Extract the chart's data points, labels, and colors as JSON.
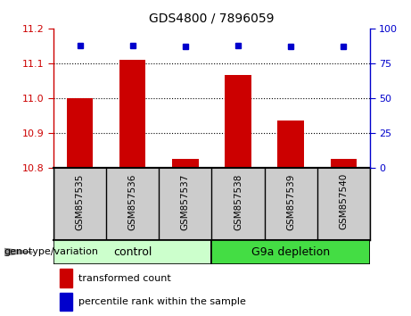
{
  "title": "GDS4800 / 7896059",
  "samples": [
    "GSM857535",
    "GSM857536",
    "GSM857537",
    "GSM857538",
    "GSM857539",
    "GSM857540"
  ],
  "bar_values": [
    11.0,
    11.11,
    10.825,
    11.065,
    10.935,
    10.825
  ],
  "percentile_values": [
    88,
    88,
    87,
    88,
    87,
    87
  ],
  "ylim_left": [
    10.8,
    11.2
  ],
  "ylim_right": [
    0,
    100
  ],
  "yticks_left": [
    10.8,
    10.9,
    11.0,
    11.1,
    11.2
  ],
  "yticks_right": [
    0,
    25,
    50,
    75,
    100
  ],
  "bar_color": "#cc0000",
  "dot_color": "#0000cc",
  "bar_bottom": 10.8,
  "control_label": "control",
  "g9a_label": "G9a depletion",
  "legend_bar_label": "transformed count",
  "legend_dot_label": "percentile rank within the sample",
  "group_label": "genotype/variation",
  "control_color": "#ccffcc",
  "g9a_color": "#44dd44",
  "tick_color_left": "#cc0000",
  "tick_color_right": "#0000cc",
  "label_bg_color": "#cccccc",
  "background_color": "#ffffff"
}
